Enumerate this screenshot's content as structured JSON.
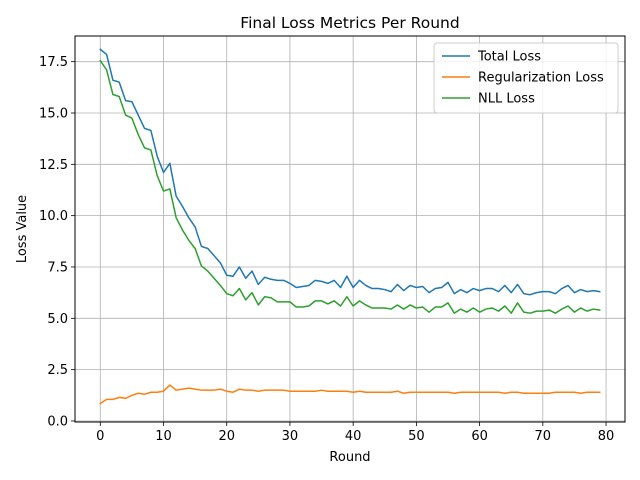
{
  "chart_data": {
    "type": "line",
    "title": "Final Loss Metrics Per Round",
    "xlabel": "Round",
    "ylabel": "Loss Value",
    "xlim": [
      -4,
      83
    ],
    "ylim": [
      -0.05,
      18.75
    ],
    "xticks": [
      0,
      10,
      20,
      30,
      40,
      50,
      60,
      70,
      80
    ],
    "xtick_labels": [
      "0",
      "10",
      "20",
      "30",
      "40",
      "50",
      "60",
      "70",
      "80"
    ],
    "yticks": [
      0.0,
      2.5,
      5.0,
      7.5,
      10.0,
      12.5,
      15.0,
      17.5
    ],
    "ytick_labels": [
      "0.0",
      "2.5",
      "5.0",
      "7.5",
      "10.0",
      "12.5",
      "15.0",
      "17.5"
    ],
    "grid": true,
    "legend_position": "top-right",
    "x": [
      0,
      1,
      2,
      3,
      4,
      5,
      6,
      7,
      8,
      9,
      10,
      11,
      12,
      13,
      14,
      15,
      16,
      17,
      18,
      19,
      20,
      21,
      22,
      23,
      24,
      25,
      26,
      27,
      28,
      29,
      30,
      31,
      32,
      33,
      34,
      35,
      36,
      37,
      38,
      39,
      40,
      41,
      42,
      43,
      44,
      45,
      46,
      47,
      48,
      49,
      50,
      51,
      52,
      53,
      54,
      55,
      56,
      57,
      58,
      59,
      60,
      61,
      62,
      63,
      64,
      65,
      66,
      67,
      68,
      69,
      70,
      71,
      72,
      73,
      74,
      75,
      76,
      77,
      78,
      79
    ],
    "series": [
      {
        "name": "Total Loss",
        "color": "#1f77b4",
        "values": [
          18.1,
          17.85,
          16.6,
          16.5,
          15.6,
          15.55,
          14.9,
          14.25,
          14.15,
          12.9,
          12.1,
          12.55,
          10.95,
          10.45,
          9.9,
          9.45,
          8.5,
          8.4,
          8.05,
          7.7,
          7.1,
          7.05,
          7.5,
          6.95,
          7.3,
          6.65,
          7.0,
          6.9,
          6.85,
          6.85,
          6.7,
          6.5,
          6.55,
          6.6,
          6.85,
          6.8,
          6.7,
          6.85,
          6.5,
          7.05,
          6.5,
          6.85,
          6.6,
          6.45,
          6.45,
          6.4,
          6.3,
          6.65,
          6.35,
          6.6,
          6.5,
          6.55,
          6.25,
          6.45,
          6.5,
          6.75,
          6.2,
          6.4,
          6.25,
          6.45,
          6.35,
          6.45,
          6.45,
          6.3,
          6.6,
          6.25,
          6.65,
          6.2,
          6.15,
          6.25,
          6.3,
          6.3,
          6.2,
          6.45,
          6.6,
          6.25,
          6.4,
          6.3,
          6.35,
          6.3
        ]
      },
      {
        "name": "Regularization Loss",
        "color": "#ff7f0e",
        "values": [
          0.85,
          1.05,
          1.05,
          1.15,
          1.1,
          1.25,
          1.35,
          1.3,
          1.4,
          1.4,
          1.45,
          1.75,
          1.5,
          1.55,
          1.6,
          1.55,
          1.5,
          1.5,
          1.5,
          1.55,
          1.45,
          1.4,
          1.55,
          1.5,
          1.5,
          1.45,
          1.5,
          1.5,
          1.5,
          1.5,
          1.45,
          1.45,
          1.45,
          1.45,
          1.45,
          1.5,
          1.45,
          1.45,
          1.45,
          1.45,
          1.4,
          1.45,
          1.4,
          1.4,
          1.4,
          1.4,
          1.4,
          1.45,
          1.35,
          1.4,
          1.4,
          1.4,
          1.4,
          1.4,
          1.4,
          1.4,
          1.35,
          1.4,
          1.4,
          1.4,
          1.4,
          1.4,
          1.4,
          1.4,
          1.35,
          1.4,
          1.4,
          1.35,
          1.35,
          1.35,
          1.35,
          1.35,
          1.4,
          1.4,
          1.4,
          1.4,
          1.35,
          1.4,
          1.4,
          1.4
        ]
      },
      {
        "name": "NLL Loss",
        "color": "#2ca02c",
        "values": [
          17.55,
          17.1,
          15.9,
          15.8,
          14.9,
          14.75,
          13.95,
          13.3,
          13.2,
          11.95,
          11.2,
          11.3,
          9.9,
          9.3,
          8.8,
          8.4,
          7.55,
          7.3,
          6.95,
          6.6,
          6.2,
          6.1,
          6.45,
          5.9,
          6.25,
          5.65,
          6.05,
          6.0,
          5.8,
          5.8,
          5.8,
          5.55,
          5.55,
          5.6,
          5.85,
          5.85,
          5.7,
          5.85,
          5.6,
          6.05,
          5.6,
          5.85,
          5.65,
          5.5,
          5.5,
          5.5,
          5.45,
          5.65,
          5.45,
          5.65,
          5.5,
          5.55,
          5.3,
          5.55,
          5.55,
          5.75,
          5.25,
          5.45,
          5.3,
          5.5,
          5.3,
          5.45,
          5.5,
          5.35,
          5.6,
          5.25,
          5.75,
          5.3,
          5.25,
          5.35,
          5.35,
          5.4,
          5.25,
          5.45,
          5.6,
          5.3,
          5.5,
          5.35,
          5.45,
          5.4
        ]
      }
    ]
  }
}
